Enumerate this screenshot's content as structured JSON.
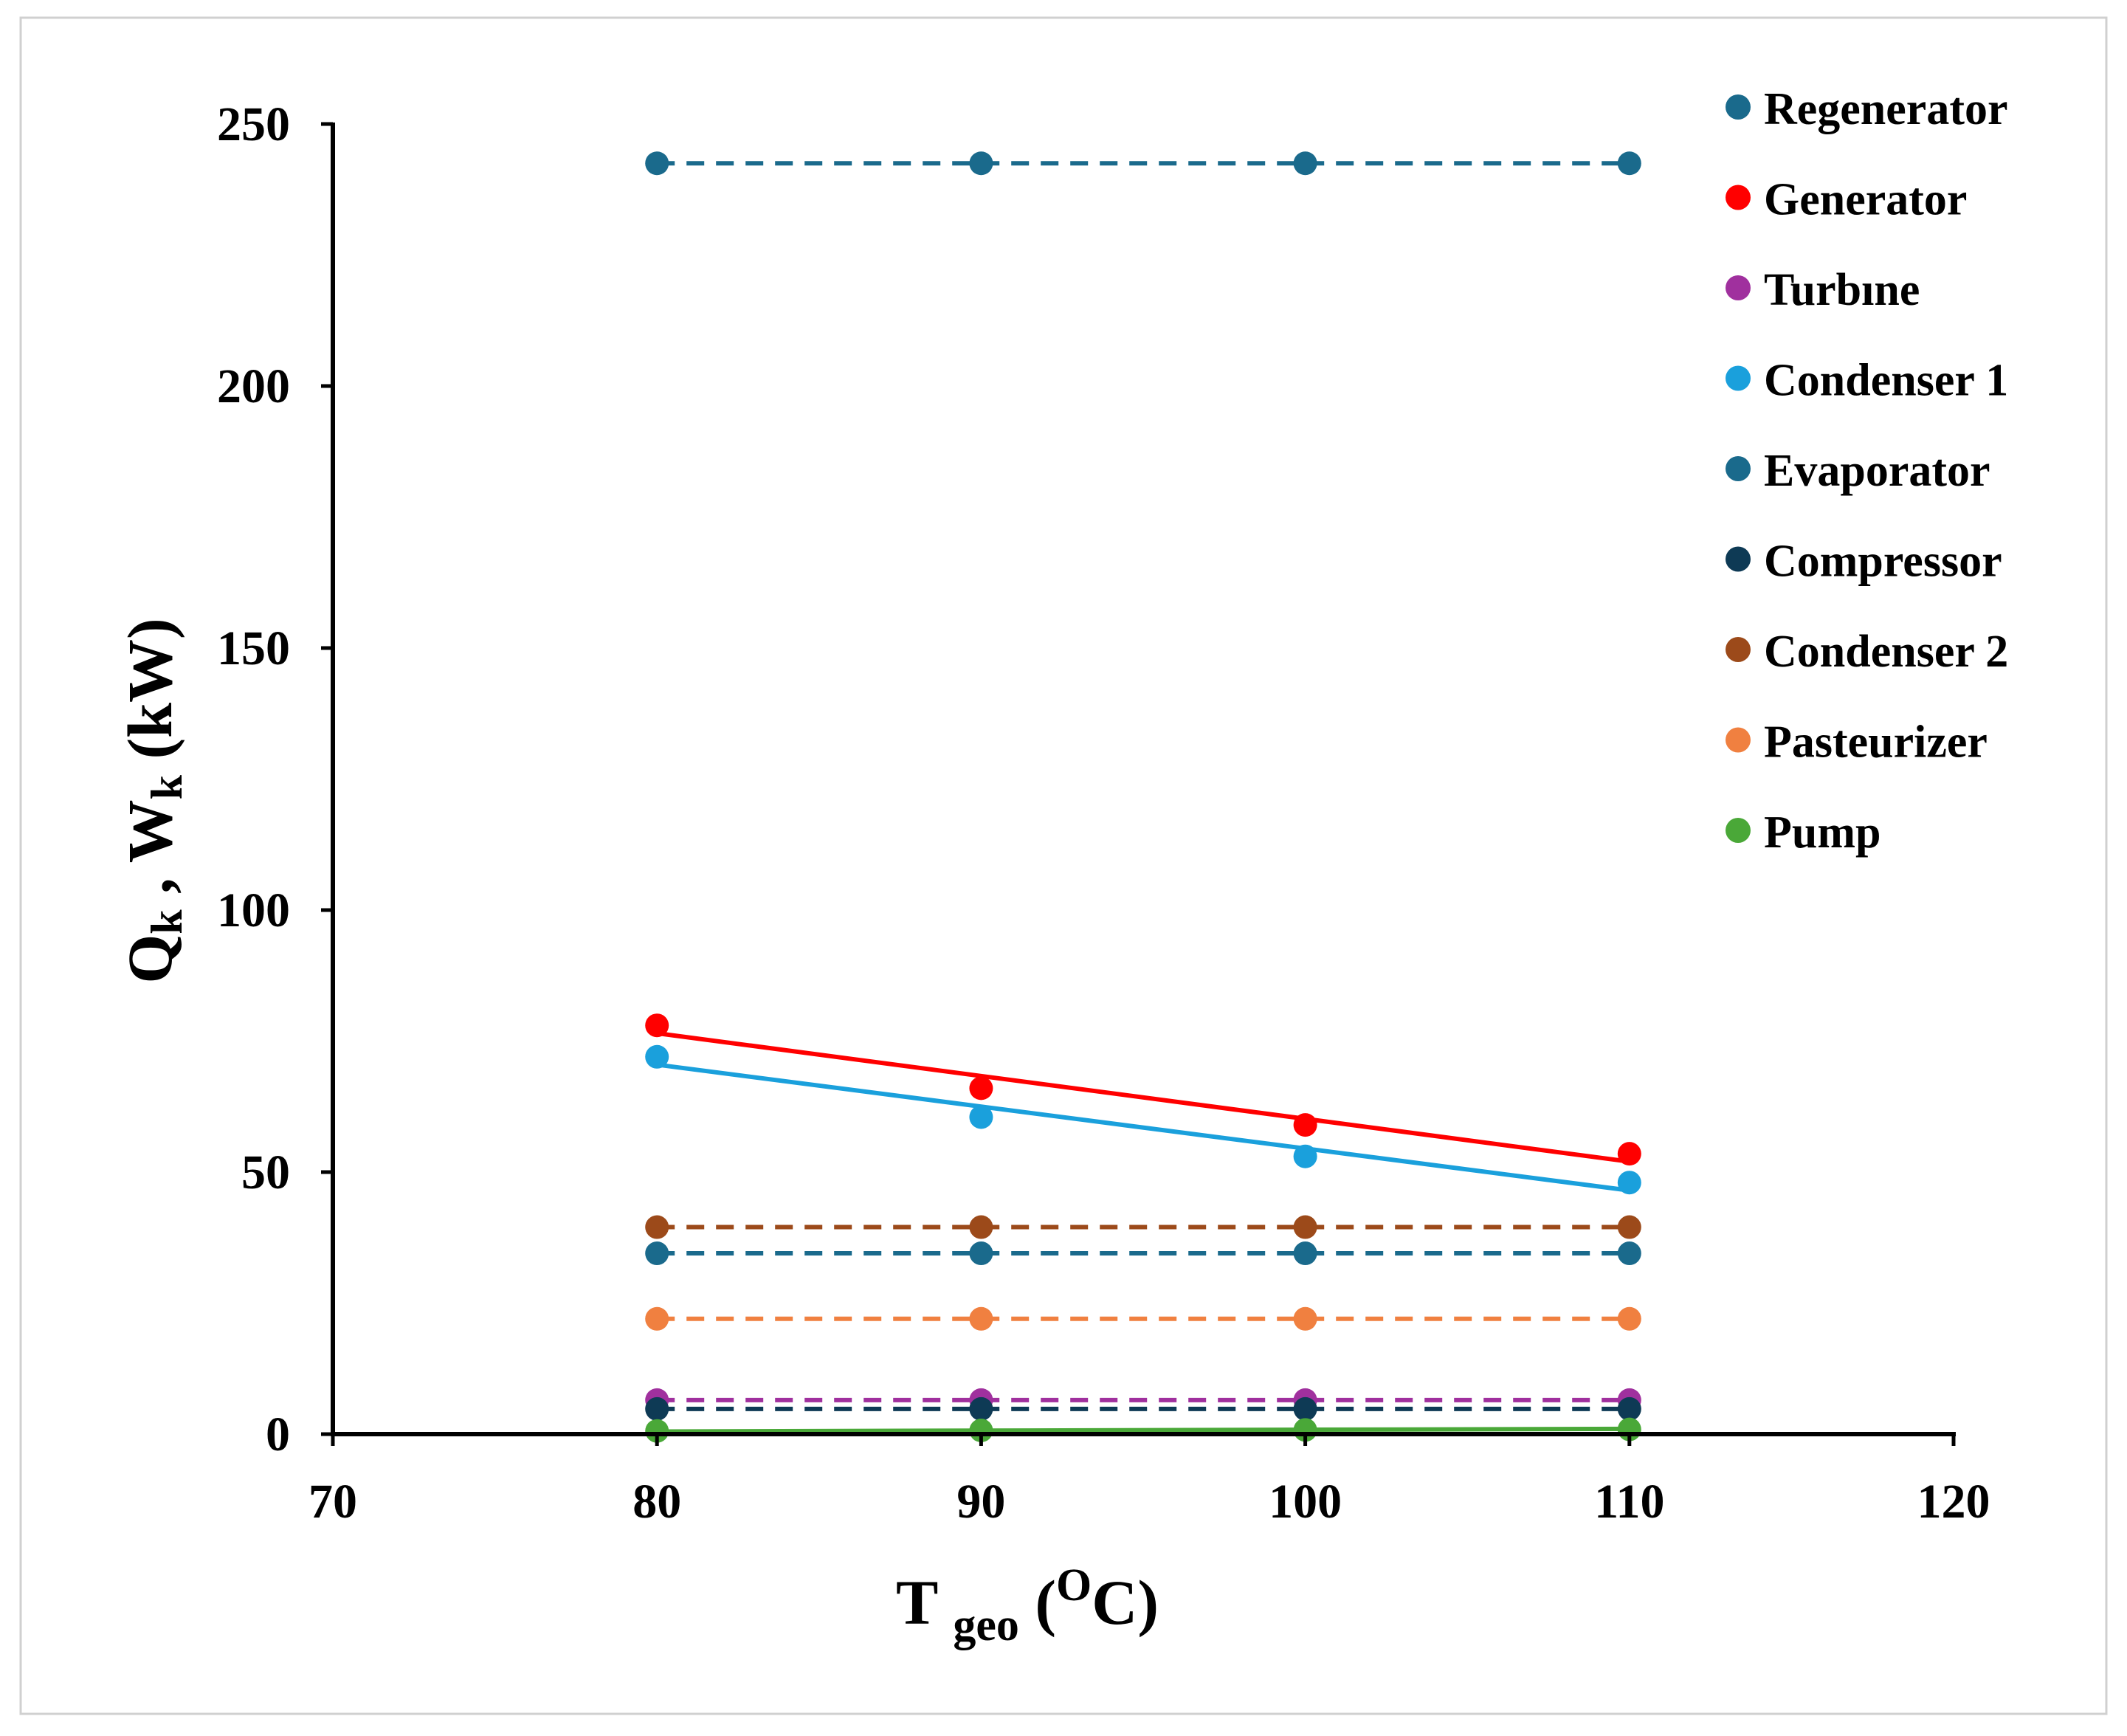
{
  "chart_data": {
    "type": "line",
    "title": "",
    "xlabel": {
      "main": "T",
      "sub": "geo",
      "open": " (",
      "sup": "O",
      "unit": "C)"
    },
    "ylabel": {
      "q": "Q",
      "q_sub": "k",
      "sep": " , ",
      "w": "W",
      "w_sub": "k",
      "unit": " (kW)"
    },
    "xlim": [
      70,
      120
    ],
    "ylim": [
      0,
      250
    ],
    "xticks": [
      70,
      80,
      90,
      100,
      110,
      120
    ],
    "yticks": [
      0,
      50,
      100,
      150,
      200,
      250
    ],
    "grid": false,
    "legend_position": "top-right",
    "x": [
      80,
      90,
      100,
      110
    ],
    "series": [
      {
        "name": "Regenerator",
        "color": "#1a6a8c",
        "values": [
          242.5,
          242.5,
          242.5,
          242.5
        ],
        "trend": [
          242.5,
          242.5
        ],
        "line": "dashed"
      },
      {
        "name": "Generator",
        "color": "#ff0000",
        "values": [
          78,
          66,
          59,
          53.5
        ],
        "trend": [
          76.5,
          52
        ],
        "line": "solid"
      },
      {
        "name": "Turbıne",
        "color": "#a0309e",
        "values": [
          6.5,
          6.5,
          6.5,
          6.5
        ],
        "trend": [
          6.5,
          6.5
        ],
        "line": "dashed"
      },
      {
        "name": "Condenser 1",
        "color": "#1aa0dc",
        "values": [
          72,
          60.5,
          53,
          48
        ],
        "trend": [
          70.5,
          46.5
        ],
        "line": "solid"
      },
      {
        "name": "Evaporator",
        "color": "#1a6a8c",
        "values": [
          34.5,
          34.5,
          34.5,
          34.5
        ],
        "trend": [
          34.5,
          34.5
        ],
        "line": "dashed"
      },
      {
        "name": "Compressor",
        "color": "#0e3a55",
        "values": [
          4.8,
          4.8,
          4.8,
          4.8
        ],
        "trend": [
          4.8,
          4.8
        ],
        "line": "dashed"
      },
      {
        "name": "Condenser 2",
        "color": "#9c4a1a",
        "values": [
          39.5,
          39.5,
          39.5,
          39.5
        ],
        "trend": [
          39.5,
          39.5
        ],
        "line": "dashed"
      },
      {
        "name": "Pasteurizer",
        "color": "#f08040",
        "values": [
          22,
          22,
          22,
          22
        ],
        "trend": [
          22,
          22
        ],
        "line": "dashed"
      },
      {
        "name": "Pump",
        "color": "#4aa838",
        "values": [
          0.6,
          0.7,
          0.8,
          0.9
        ],
        "trend": [
          0.5,
          1
        ],
        "line": "solid"
      }
    ]
  }
}
